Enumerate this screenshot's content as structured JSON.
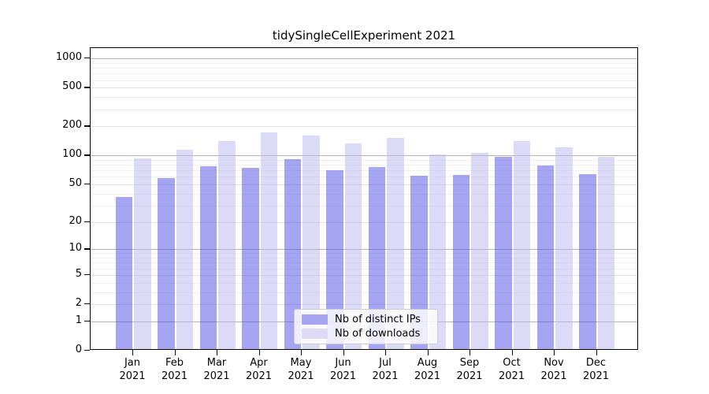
{
  "chart_data": {
    "type": "bar",
    "title": "tidySingleCellExperiment 2021",
    "year_label": "2021",
    "categories": [
      "Jan",
      "Feb",
      "Mar",
      "Apr",
      "May",
      "Jun",
      "Jul",
      "Aug",
      "Sep",
      "Oct",
      "Nov",
      "Dec"
    ],
    "series": [
      {
        "name": "Nb of distinct IPs",
        "color": "#a5a5f1",
        "fill_rgba": "rgba(75,75,227,0.5)",
        "values": [
          37,
          58,
          77,
          74,
          91,
          70,
          76,
          62,
          63,
          97,
          79,
          64
        ]
      },
      {
        "name": "Nb of downloads",
        "color": "#dbdbf8",
        "fill_rgba": "rgba(183,183,241,0.5)",
        "values": [
          93,
          115,
          142,
          173,
          161,
          133,
          152,
          102,
          106,
          141,
          121,
          97
        ]
      }
    ],
    "yscale": "log10(1+x)",
    "ymax_top": 1277,
    "ytick_values": [
      0,
      1,
      2,
      5,
      10,
      20,
      50,
      100,
      200,
      500,
      1000
    ],
    "ytick_labels": [
      "0",
      "1",
      "2",
      "5",
      "10",
      "20",
      "50",
      "100",
      "200",
      "500",
      "1000"
    ],
    "xlabel": "",
    "ylabel": "",
    "grid": {
      "on": true,
      "major_ticks": [
        1,
        10,
        100,
        1000
      ],
      "labeled_minor_ticks": [
        2,
        5,
        20,
        50,
        200,
        500
      ],
      "major_color": "#b3b3b3",
      "labeled_minor_color": "#e2e2e2",
      "minor_color": "#efefef"
    },
    "legend": {
      "position": "lower center",
      "entries": [
        "Nb of distinct IPs",
        "Nb of downloads"
      ]
    }
  }
}
